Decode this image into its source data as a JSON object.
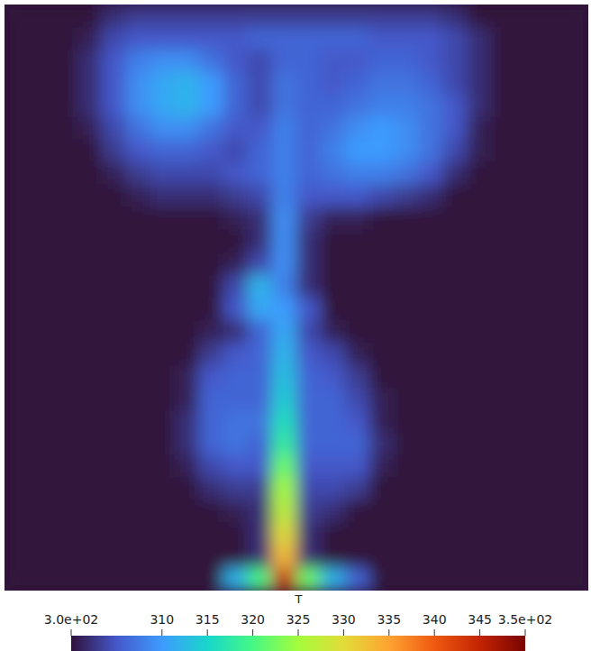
{
  "chart_data": {
    "type": "heatmap",
    "colorbar_title": "T",
    "colorbar_range": [
      300,
      350
    ],
    "colorbar_ticks": [
      {
        "value": 300,
        "label": "3.0e+02"
      },
      310,
      315,
      320,
      325,
      330,
      335,
      340,
      345,
      {
        "value": 350,
        "label": "3.5e+02"
      }
    ],
    "tick_labels": false,
    "cells": [
      [
        300,
        300,
        300,
        300,
        302,
        303,
        303,
        303,
        303,
        303,
        303,
        303,
        303,
        303,
        303,
        303,
        303,
        303,
        302,
        300,
        300,
        300,
        300,
        300
      ],
      [
        300,
        300,
        300,
        301,
        304,
        305,
        305,
        305,
        305,
        305,
        306,
        306,
        306,
        306,
        306,
        305,
        305,
        305,
        304,
        302,
        300,
        300,
        300,
        300
      ],
      [
        300,
        300,
        300,
        302,
        305,
        308,
        309,
        309,
        307,
        305,
        304,
        306,
        306,
        305,
        305,
        306,
        306,
        305,
        304,
        302,
        300,
        300,
        300,
        300
      ],
      [
        300,
        300,
        300,
        302,
        305,
        309,
        311,
        312,
        310,
        306,
        304,
        307,
        306,
        305,
        306,
        307,
        307,
        306,
        304,
        302,
        300,
        300,
        300,
        300
      ],
      [
        300,
        300,
        300,
        302,
        305,
        309,
        311,
        312,
        310,
        306,
        304,
        307,
        306,
        306,
        307,
        308,
        308,
        307,
        305,
        302,
        300,
        300,
        300,
        300
      ],
      [
        300,
        300,
        300,
        301,
        304,
        307,
        309,
        309,
        307,
        305,
        305,
        308,
        306,
        307,
        309,
        310,
        309,
        307,
        305,
        301,
        300,
        300,
        300,
        300
      ],
      [
        300,
        300,
        300,
        300,
        303,
        305,
        306,
        306,
        305,
        304,
        306,
        308,
        306,
        308,
        310,
        310,
        309,
        307,
        304,
        301,
        300,
        300,
        300,
        300
      ],
      [
        300,
        300,
        300,
        300,
        301,
        303,
        304,
        304,
        304,
        305,
        306,
        308,
        306,
        307,
        308,
        308,
        307,
        305,
        302,
        300,
        300,
        300,
        300,
        300
      ],
      [
        300,
        300,
        300,
        300,
        300,
        301,
        302,
        302,
        302,
        303,
        304,
        308,
        305,
        305,
        305,
        304,
        303,
        302,
        300,
        300,
        300,
        300,
        300,
        300
      ],
      [
        300,
        300,
        300,
        300,
        300,
        300,
        300,
        300,
        300,
        301,
        302,
        309,
        303,
        301,
        301,
        300,
        300,
        300,
        300,
        300,
        300,
        300,
        300,
        300
      ],
      [
        300,
        300,
        300,
        300,
        300,
        300,
        300,
        300,
        300,
        300,
        302,
        309,
        302,
        300,
        300,
        300,
        300,
        300,
        300,
        300,
        300,
        300,
        300,
        300
      ],
      [
        300,
        300,
        300,
        300,
        300,
        300,
        300,
        300,
        300,
        301,
        304,
        309,
        302,
        300,
        300,
        300,
        300,
        300,
        300,
        300,
        300,
        300,
        300,
        300
      ],
      [
        300,
        300,
        300,
        300,
        300,
        300,
        300,
        300,
        300,
        304,
        312,
        308,
        302,
        300,
        300,
        300,
        300,
        300,
        300,
        300,
        300,
        300,
        300,
        300
      ],
      [
        300,
        300,
        300,
        300,
        300,
        300,
        300,
        300,
        300,
        305,
        311,
        310,
        305,
        300,
        300,
        300,
        300,
        300,
        300,
        300,
        300,
        300,
        300,
        300
      ],
      [
        300,
        300,
        300,
        300,
        300,
        300,
        300,
        300,
        301,
        302,
        306,
        311,
        304,
        301,
        300,
        300,
        300,
        300,
        300,
        300,
        300,
        300,
        300,
        300
      ],
      [
        300,
        300,
        300,
        300,
        300,
        300,
        300,
        300,
        303,
        305,
        306,
        312,
        305,
        304,
        301,
        300,
        300,
        300,
        300,
        300,
        300,
        300,
        300,
        300
      ],
      [
        300,
        300,
        300,
        300,
        300,
        300,
        300,
        301,
        305,
        306,
        306,
        313,
        306,
        305,
        303,
        300,
        300,
        300,
        300,
        300,
        300,
        300,
        300,
        300
      ],
      [
        300,
        300,
        300,
        300,
        300,
        300,
        300,
        301,
        306,
        306,
        306,
        314,
        306,
        306,
        304,
        301,
        300,
        300,
        300,
        300,
        300,
        300,
        300,
        300
      ],
      [
        300,
        300,
        300,
        300,
        300,
        300,
        300,
        302,
        306,
        307,
        307,
        316,
        306,
        306,
        305,
        301,
        300,
        300,
        300,
        300,
        300,
        300,
        300,
        300
      ],
      [
        300,
        300,
        300,
        300,
        300,
        300,
        300,
        302,
        306,
        307,
        306,
        318,
        306,
        306,
        306,
        302,
        300,
        300,
        300,
        300,
        300,
        300,
        300,
        300
      ],
      [
        300,
        300,
        300,
        300,
        300,
        300,
        300,
        301,
        304,
        305,
        305,
        322,
        305,
        305,
        305,
        301,
        300,
        300,
        300,
        300,
        300,
        300,
        300,
        300
      ],
      [
        300,
        300,
        300,
        300,
        300,
        300,
        300,
        300,
        302,
        303,
        303,
        325,
        304,
        304,
        303,
        300,
        300,
        300,
        300,
        300,
        300,
        300,
        300,
        300
      ],
      [
        300,
        300,
        300,
        300,
        300,
        300,
        300,
        300,
        300,
        301,
        302,
        327,
        303,
        302,
        300,
        300,
        300,
        300,
        300,
        300,
        300,
        300,
        300,
        300
      ],
      [
        300,
        300,
        300,
        300,
        300,
        300,
        300,
        300,
        300,
        300,
        302,
        330,
        302,
        300,
        300,
        300,
        300,
        300,
        300,
        300,
        300,
        300,
        300,
        300
      ],
      [
        300,
        300,
        300,
        300,
        300,
        300,
        300,
        300,
        300,
        300,
        302,
        333,
        302,
        300,
        300,
        300,
        300,
        300,
        300,
        300,
        300,
        300,
        300,
        300
      ],
      [
        300,
        300,
        300,
        300,
        300,
        300,
        300,
        300,
        300,
        312,
        320,
        345,
        322,
        312,
        306,
        300,
        300,
        300,
        300,
        300,
        300,
        300,
        300,
        300
      ]
    ]
  }
}
